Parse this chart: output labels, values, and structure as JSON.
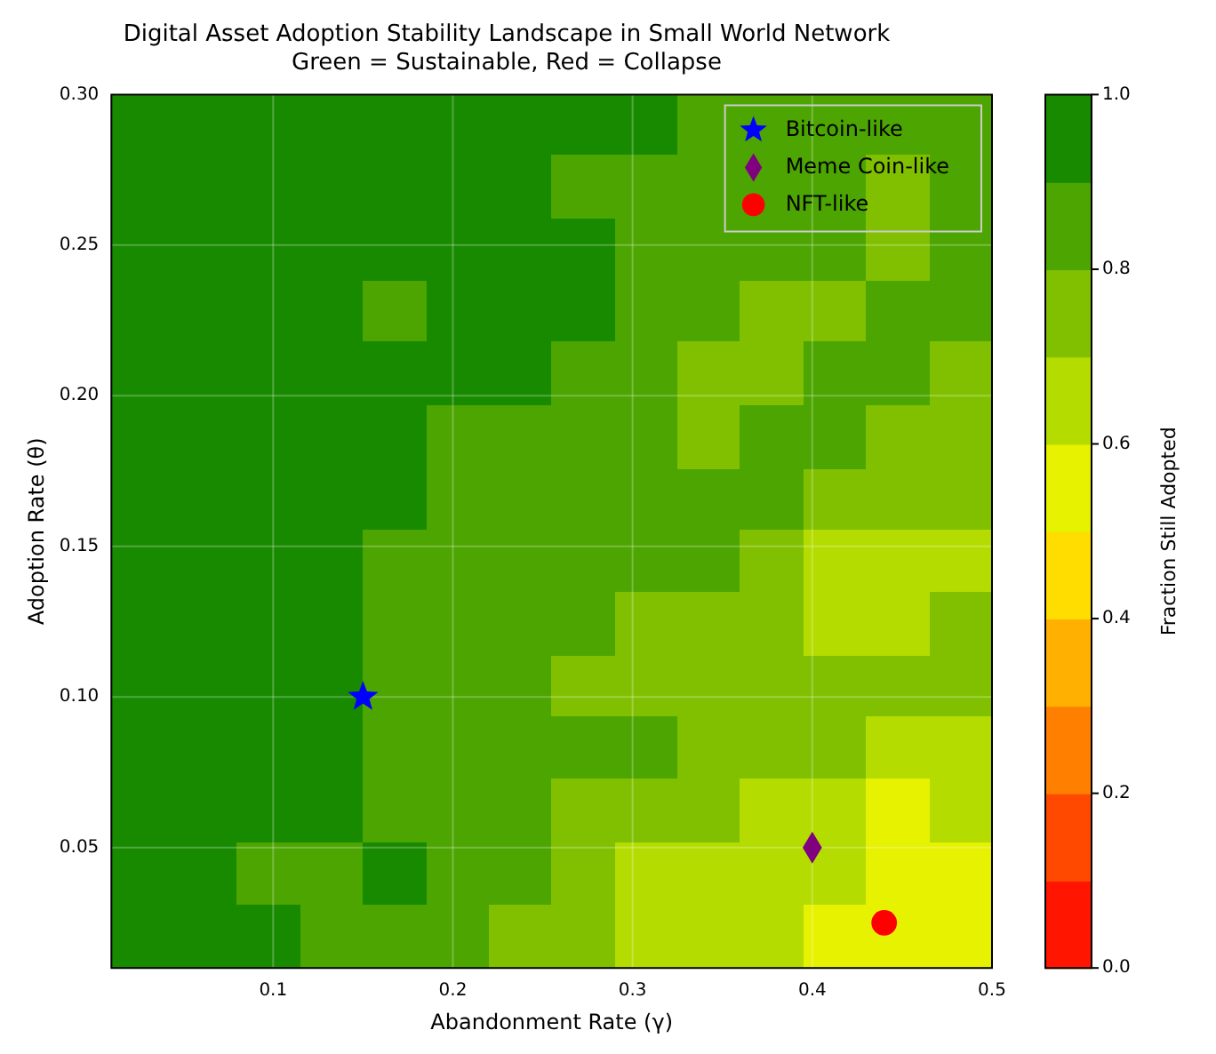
{
  "chart_data": {
    "type": "heatmap",
    "title": "Digital Asset Adoption Stability Landscape in Small World Network",
    "subtitle": "Green = Sustainable, Red = Collapse",
    "xlabel": "Abandonment Rate (γ)",
    "ylabel": "Adoption Rate (θ)",
    "clabel": "Fraction Still Adopted",
    "x": [
      0.028,
      0.063,
      0.098,
      0.133,
      0.168,
      0.203,
      0.238,
      0.273,
      0.308,
      0.343,
      0.378,
      0.413,
      0.448,
      0.483
    ],
    "y": [
      0.29,
      0.269,
      0.248,
      0.228,
      0.207,
      0.186,
      0.165,
      0.145,
      0.124,
      0.103,
      0.083,
      0.062,
      0.041,
      0.02
    ],
    "xlim": [
      0.01,
      0.5
    ],
    "xticks": [
      0.1,
      0.2,
      0.3,
      0.4,
      0.5
    ],
    "ylim": [
      0.01,
      0.3
    ],
    "yticks": [
      0.05,
      {
        "value": 0.1,
        "label": "0.10"
      },
      0.15,
      {
        "value": 0.2,
        "label": "0.20"
      },
      0.25,
      {
        "value": 0.3,
        "label": "0.30"
      }
    ],
    "clim": [
      0,
      1
    ],
    "cticks": [
      {
        "value": 0,
        "label": "0.0"
      },
      0.2,
      0.4,
      0.6,
      0.8,
      {
        "value": 1,
        "label": "1.0"
      }
    ],
    "colors": [
      "#ff1500",
      "#ff4800",
      "#ff8000",
      "#ffb000",
      "#ffdd00",
      "#e6f200",
      "#b4dc00",
      "#80c000",
      "#4ca500",
      "#188a00"
    ],
    "cells": [
      [
        0.95,
        0.95,
        0.95,
        0.95,
        0.95,
        0.95,
        0.95,
        0.95,
        0.95,
        0.85,
        0.85,
        0.85,
        0.85,
        0.85
      ],
      [
        0.95,
        0.95,
        0.95,
        0.95,
        0.95,
        0.95,
        0.95,
        0.85,
        0.85,
        0.85,
        0.85,
        0.85,
        0.75,
        0.85
      ],
      [
        0.95,
        0.95,
        0.95,
        0.95,
        0.95,
        0.95,
        0.95,
        0.95,
        0.85,
        0.85,
        0.85,
        0.85,
        0.75,
        0.85
      ],
      [
        0.95,
        0.95,
        0.95,
        0.95,
        0.85,
        0.95,
        0.95,
        0.95,
        0.85,
        0.85,
        0.75,
        0.75,
        0.85,
        0.85
      ],
      [
        0.95,
        0.95,
        0.95,
        0.95,
        0.95,
        0.95,
        0.95,
        0.85,
        0.85,
        0.75,
        0.75,
        0.85,
        0.85,
        0.75
      ],
      [
        0.95,
        0.95,
        0.95,
        0.95,
        0.95,
        0.85,
        0.85,
        0.85,
        0.85,
        0.75,
        0.85,
        0.85,
        0.75,
        0.75
      ],
      [
        0.95,
        0.95,
        0.95,
        0.95,
        0.95,
        0.85,
        0.85,
        0.85,
        0.85,
        0.85,
        0.85,
        0.75,
        0.75,
        0.75
      ],
      [
        0.95,
        0.95,
        0.95,
        0.95,
        0.85,
        0.85,
        0.85,
        0.85,
        0.85,
        0.85,
        0.75,
        0.65,
        0.65,
        0.65
      ],
      [
        0.95,
        0.95,
        0.95,
        0.95,
        0.85,
        0.85,
        0.85,
        0.85,
        0.75,
        0.75,
        0.75,
        0.65,
        0.65,
        0.75
      ],
      [
        0.95,
        0.95,
        0.95,
        0.95,
        0.85,
        0.85,
        0.85,
        0.75,
        0.75,
        0.75,
        0.75,
        0.75,
        0.75,
        0.75
      ],
      [
        0.95,
        0.95,
        0.95,
        0.95,
        0.85,
        0.85,
        0.85,
        0.85,
        0.85,
        0.75,
        0.75,
        0.75,
        0.65,
        0.65
      ],
      [
        0.95,
        0.95,
        0.95,
        0.95,
        0.85,
        0.85,
        0.85,
        0.75,
        0.75,
        0.75,
        0.65,
        0.65,
        0.55,
        0.65
      ],
      [
        0.95,
        0.95,
        0.85,
        0.85,
        0.95,
        0.85,
        0.85,
        0.75,
        0.65,
        0.65,
        0.65,
        0.65,
        0.55,
        0.55
      ],
      [
        0.95,
        0.95,
        0.95,
        0.85,
        0.85,
        0.85,
        0.75,
        0.75,
        0.65,
        0.65,
        0.65,
        0.55,
        0.55,
        0.55
      ]
    ],
    "series": [
      {
        "name": "Bitcoin-like",
        "type": "scatter",
        "marker": "star",
        "color": "#0000ff",
        "x": [
          0.15
        ],
        "values": [
          0.1
        ]
      },
      {
        "name": "Meme Coin-like",
        "type": "scatter",
        "marker": "diamond",
        "color": "#800080",
        "x": [
          0.4
        ],
        "values": [
          0.05
        ]
      },
      {
        "name": "NFT-like",
        "type": "scatter",
        "marker": "circle",
        "color": "#ff0000",
        "x": [
          0.44
        ],
        "values": [
          0.025
        ]
      }
    ],
    "grid": true,
    "legend": "top right"
  }
}
